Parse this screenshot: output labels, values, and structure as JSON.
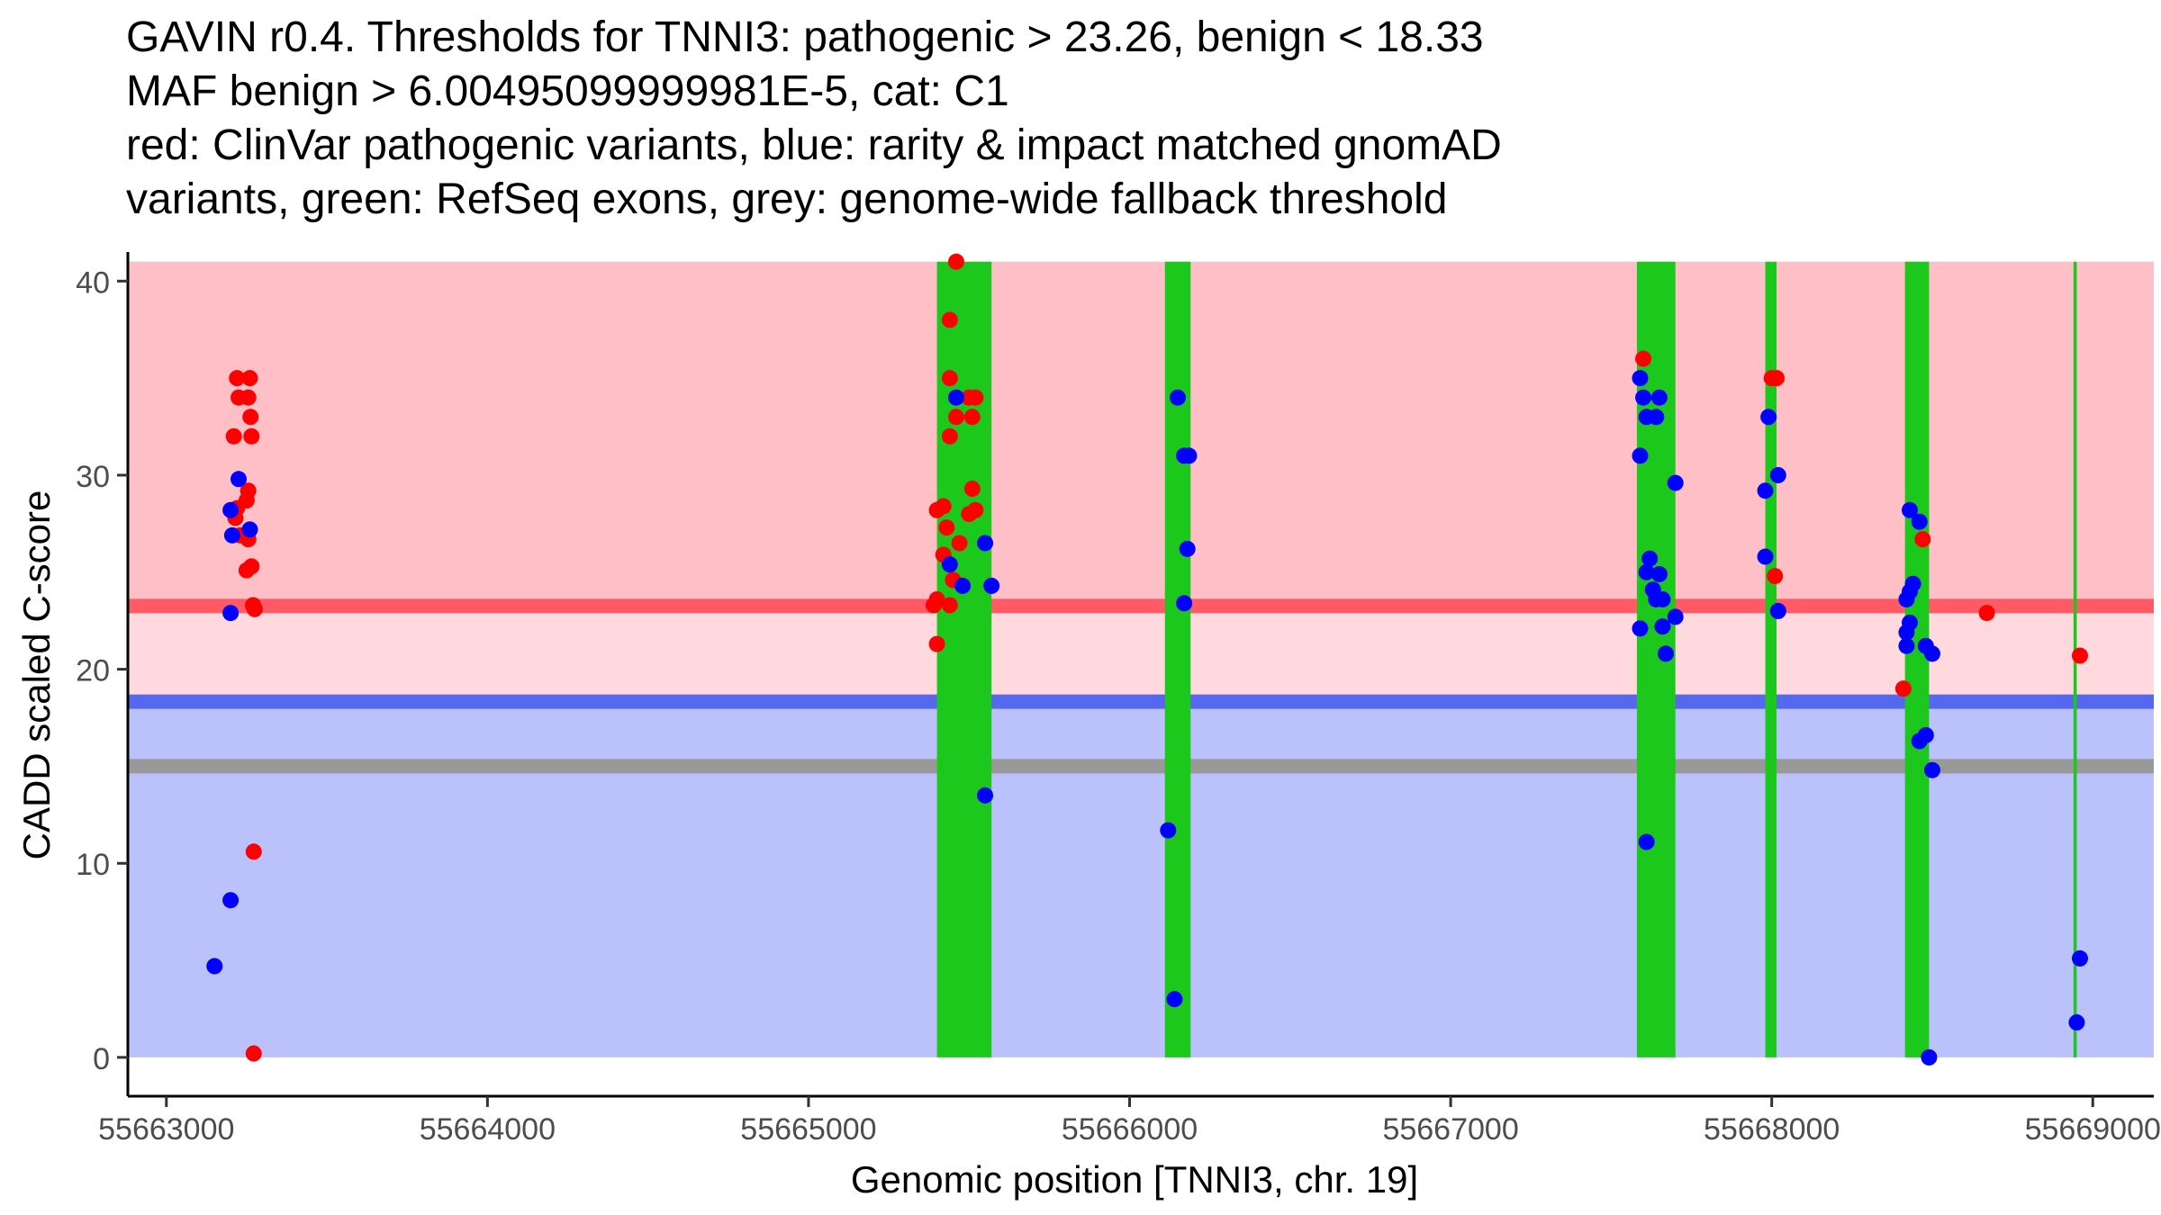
{
  "title_lines": [
    "GAVIN r0.4. Thresholds for TNNI3: pathogenic > 23.26, benign < 18.33",
    "MAF benign > 6.00495099999981E-5, cat: C1",
    "red: ClinVar pathogenic variants, blue: rarity & impact matched gnomAD",
    "variants, green: RefSeq exons, grey: genome-wide fallback threshold"
  ],
  "chart_data": {
    "type": "scatter",
    "xlabel": "Genomic position [TNNI3, chr. 19]",
    "ylabel": "CADD scaled C-score",
    "xlim": [
      55662880,
      55669190
    ],
    "ylim": [
      -2,
      41.5
    ],
    "x_ticks": [
      55663000,
      55664000,
      55665000,
      55666000,
      55667000,
      55668000,
      55669000
    ],
    "y_ticks": [
      0,
      10,
      20,
      30,
      40
    ],
    "thresholds": {
      "pathogenic": 23.26,
      "benign": 18.33,
      "fallback": 15
    },
    "bands": [
      {
        "name": "pathogenic-zone",
        "y0": 23.26,
        "y1": 41,
        "color": "#ffbfc6"
      },
      {
        "name": "uncertain-zone",
        "y0": 18.33,
        "y1": 23.26,
        "color": "#ffd9de"
      },
      {
        "name": "benign-zone",
        "y0": 0,
        "y1": 18.33,
        "color": "#bbc2fb"
      }
    ],
    "threshold_colors": {
      "pathogenic": "#ff5a66",
      "benign": "#5668ed",
      "fallback": "#999999"
    },
    "exons": [
      {
        "start": 55665400,
        "end": 55665570
      },
      {
        "start": 55666110,
        "end": 55666190
      },
      {
        "start": 55667580,
        "end": 55667700
      },
      {
        "start": 55667980,
        "end": 55668015
      },
      {
        "start": 55668415,
        "end": 55668490
      },
      {
        "start": 55668940,
        "end": 55668950
      }
    ],
    "exon_color": "#1dc81d",
    "series": [
      {
        "name": "ClinVar pathogenic",
        "color": "#ff0000",
        "points": [
          [
            55663220,
            35
          ],
          [
            55663260,
            35
          ],
          [
            55663225,
            34
          ],
          [
            55663255,
            34
          ],
          [
            55663262,
            33
          ],
          [
            55663210,
            32
          ],
          [
            55663265,
            32
          ],
          [
            55663255,
            29.2
          ],
          [
            55663250,
            28.7
          ],
          [
            55663220,
            28.3
          ],
          [
            55663215,
            27.8
          ],
          [
            55663230,
            26.9
          ],
          [
            55663255,
            26.7
          ],
          [
            55663265,
            25.3
          ],
          [
            55663250,
            25.1
          ],
          [
            55663270,
            23.3
          ],
          [
            55663275,
            23.1
          ],
          [
            55663272,
            10.6
          ],
          [
            55663272,
            0.2
          ],
          [
            55665460,
            41
          ],
          [
            55665440,
            38
          ],
          [
            55665440,
            35
          ],
          [
            55665500,
            34
          ],
          [
            55665520,
            34
          ],
          [
            55665460,
            33
          ],
          [
            55665510,
            33
          ],
          [
            55665440,
            32
          ],
          [
            55665510,
            29.3
          ],
          [
            55665420,
            28.4
          ],
          [
            55665400,
            28.2
          ],
          [
            55665520,
            28.2
          ],
          [
            55665500,
            28
          ],
          [
            55665430,
            27.3
          ],
          [
            55665470,
            26.5
          ],
          [
            55665420,
            25.9
          ],
          [
            55665450,
            24.6
          ],
          [
            55665400,
            23.6
          ],
          [
            55665390,
            23.3
          ],
          [
            55665440,
            23.3
          ],
          [
            55665400,
            21.3
          ],
          [
            55667600,
            36
          ],
          [
            55668000,
            35
          ],
          [
            55668015,
            35
          ],
          [
            55668010,
            24.8
          ],
          [
            55668470,
            26.7
          ],
          [
            55668410,
            19
          ],
          [
            55668670,
            22.9
          ],
          [
            55668960,
            20.7
          ]
        ]
      },
      {
        "name": "gnomAD matched",
        "color": "#0000ff",
        "points": [
          [
            55663225,
            29.8
          ],
          [
            55663200,
            28.2
          ],
          [
            55663205,
            26.9
          ],
          [
            55663260,
            27.2
          ],
          [
            55663200,
            22.9
          ],
          [
            55663200,
            8.1
          ],
          [
            55663150,
            4.7
          ],
          [
            55665460,
            34
          ],
          [
            55665440,
            25.4
          ],
          [
            55665480,
            24.3
          ],
          [
            55665550,
            26.5
          ],
          [
            55665570,
            24.3
          ],
          [
            55665550,
            13.5
          ],
          [
            55666150,
            34
          ],
          [
            55666170,
            31
          ],
          [
            55666185,
            31
          ],
          [
            55666180,
            26.2
          ],
          [
            55666170,
            23.4
          ],
          [
            55666120,
            11.7
          ],
          [
            55666140,
            3
          ],
          [
            55667590,
            35
          ],
          [
            55667600,
            34
          ],
          [
            55667650,
            34
          ],
          [
            55667610,
            33
          ],
          [
            55667640,
            33
          ],
          [
            55667590,
            31
          ],
          [
            55667700,
            29.6
          ],
          [
            55667620,
            25.7
          ],
          [
            55667610,
            25
          ],
          [
            55667650,
            24.9
          ],
          [
            55667630,
            24.1
          ],
          [
            55667640,
            23.6
          ],
          [
            55667660,
            23.6
          ],
          [
            55667700,
            22.7
          ],
          [
            55667660,
            22.2
          ],
          [
            55667590,
            22.1
          ],
          [
            55667670,
            20.8
          ],
          [
            55667610,
            11.1
          ],
          [
            55667990,
            33
          ],
          [
            55668020,
            30
          ],
          [
            55667980,
            29.2
          ],
          [
            55667980,
            25.8
          ],
          [
            55668020,
            23
          ],
          [
            55668430,
            28.2
          ],
          [
            55668460,
            27.6
          ],
          [
            55668440,
            24.4
          ],
          [
            55668430,
            24
          ],
          [
            55668420,
            23.6
          ],
          [
            55668430,
            22.4
          ],
          [
            55668420,
            21.9
          ],
          [
            55668420,
            21.2
          ],
          [
            55668480,
            21.2
          ],
          [
            55668500,
            20.8
          ],
          [
            55668480,
            16.6
          ],
          [
            55668460,
            16.3
          ],
          [
            55668500,
            14.8
          ],
          [
            55668490,
            0
          ],
          [
            55668960,
            5.1
          ],
          [
            55668950,
            1.8
          ]
        ]
      }
    ]
  }
}
